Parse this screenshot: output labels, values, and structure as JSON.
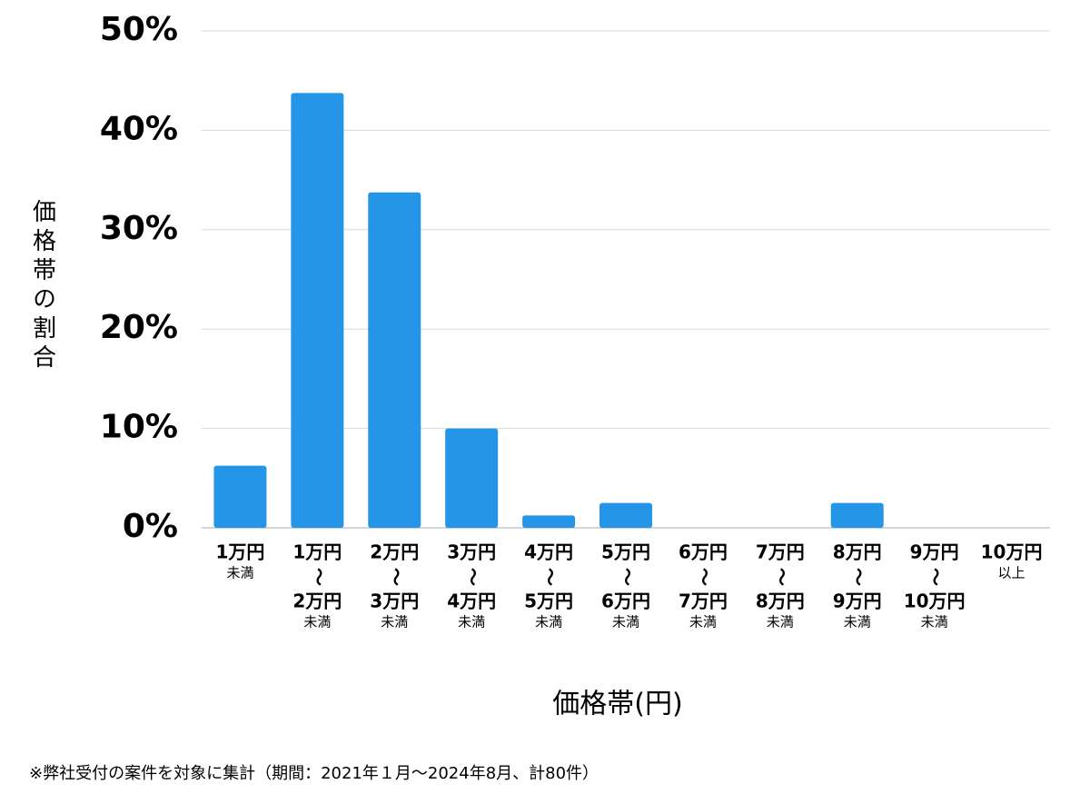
{
  "chart_data": {
    "type": "bar",
    "y_label": "価格帯の割合",
    "x_label": "価格帯(円)",
    "note": "※弊社受付の案件を対象に集計（期間：2021年１月〜2024年8月、計80件）",
    "categories": [
      [
        "1万円",
        "未満"
      ],
      [
        "1万円",
        "〜",
        "2万円",
        "未満"
      ],
      [
        "2万円",
        "〜",
        "3万円",
        "未満"
      ],
      [
        "3万円",
        "〜",
        "4万円",
        "未満"
      ],
      [
        "4万円",
        "〜",
        "5万円",
        "未満"
      ],
      [
        "5万円",
        "〜",
        "6万円",
        "未満"
      ],
      [
        "6万円",
        "〜",
        "7万円",
        "未満"
      ],
      [
        "7万円",
        "〜",
        "8万円",
        "未満"
      ],
      [
        "8万円",
        "〜",
        "9万円",
        "未満"
      ],
      [
        "9万円",
        "〜",
        "10万円",
        "未満"
      ],
      [
        "10万円",
        "以上"
      ]
    ],
    "values": [
      6.25,
      43.75,
      33.75,
      10,
      1.25,
      2.5,
      0,
      0,
      2.5,
      0,
      0
    ],
    "color": "#2595e8",
    "ylim": [
      0,
      50
    ],
    "yticks": [
      {
        "value": 0,
        "label": "0%"
      },
      {
        "value": 10,
        "label": "10%"
      },
      {
        "value": 20,
        "label": "20%"
      },
      {
        "value": 30,
        "label": "30%"
      },
      {
        "value": 40,
        "label": "40%"
      },
      {
        "value": 50,
        "label": "50%"
      }
    ],
    "grid": true
  }
}
